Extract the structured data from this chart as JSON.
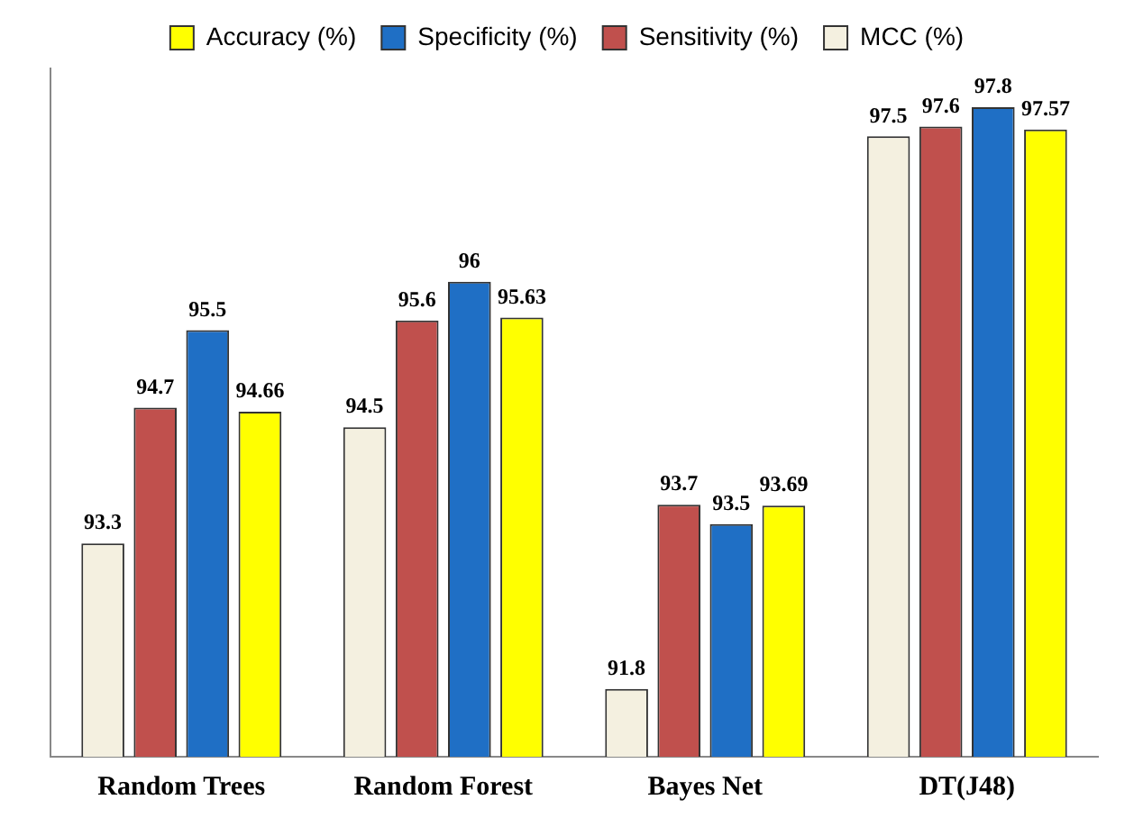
{
  "chart_data": {
    "type": "bar",
    "categories": [
      "Random Trees",
      "Random Forest",
      "Bayes Net",
      "DT(J48)"
    ],
    "series": [
      {
        "name": "MCC (%)",
        "color": "#f4f0e0",
        "values": [
          93.3,
          94.5,
          91.8,
          97.5
        ]
      },
      {
        "name": "Sensitivity (%)",
        "color": "#c0504d",
        "values": [
          94.7,
          95.6,
          93.7,
          97.6
        ]
      },
      {
        "name": "Specificity (%)",
        "color": "#1f6fc5",
        "values": [
          95.5,
          96,
          93.5,
          97.8
        ]
      },
      {
        "name": "Accuracy (%)",
        "color": "#ffff00",
        "values": [
          94.66,
          95.63,
          93.69,
          97.57
        ]
      }
    ],
    "ylim": [
      91.1,
      98.2
    ],
    "tick_labels": "x",
    "data_labels": true,
    "grid": false,
    "legend": "top"
  }
}
